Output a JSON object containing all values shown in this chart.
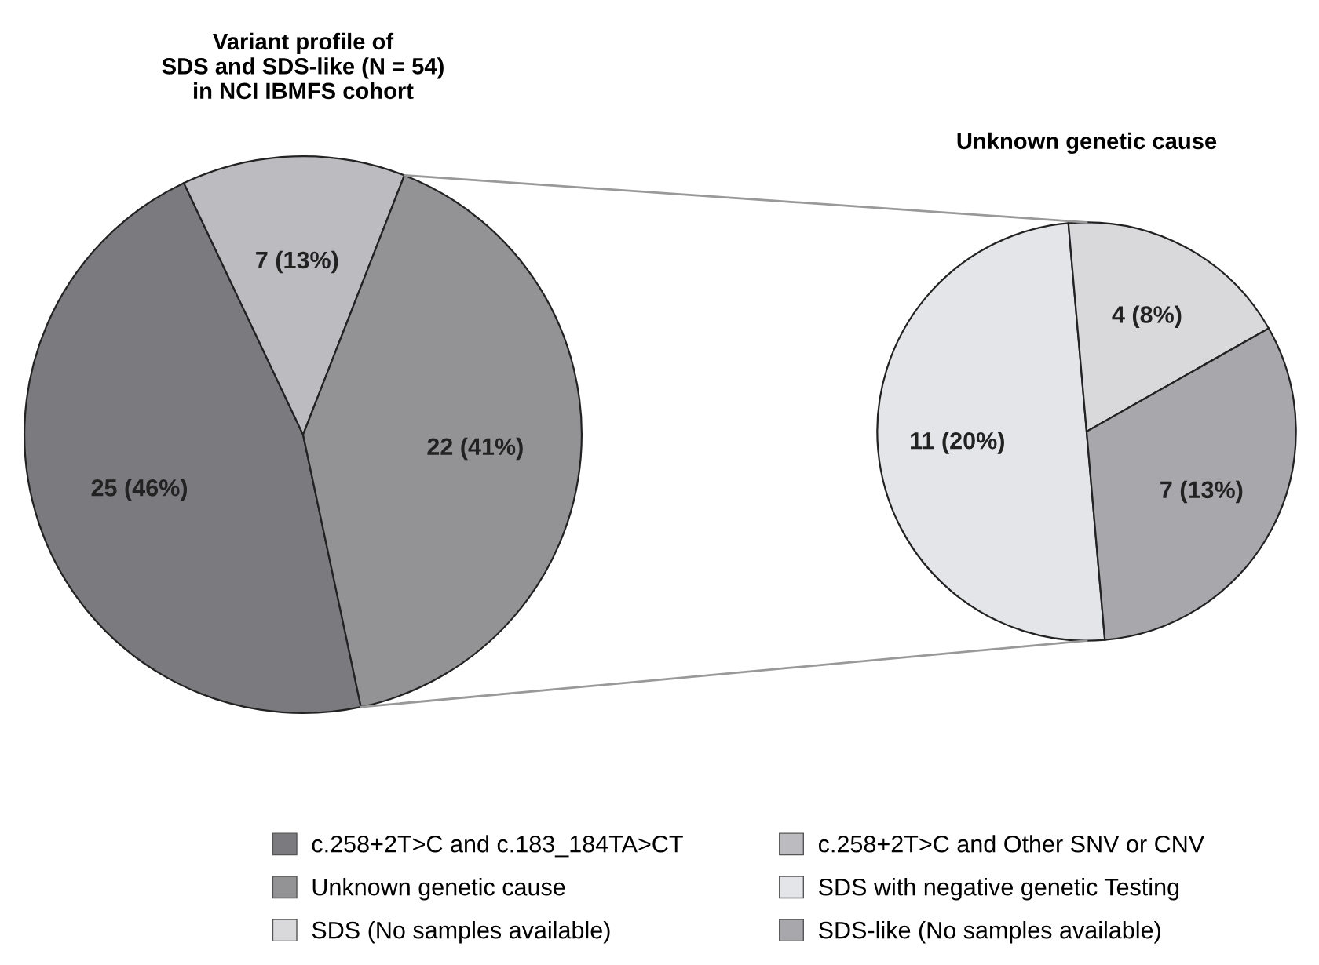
{
  "chart_data": [
    {
      "type": "pie",
      "title": "Variant profile of\nSDS and SDS-like (N = 54)\nin NCI IBMFS cohort",
      "categories": [
        "c.258+2T>C and c.183_184TA>CT",
        "c.258+2T>C and Other SNV or CNV",
        "Unknown genetic cause"
      ],
      "values": [
        25,
        7,
        22
      ],
      "value_labels": [
        "25 (46%)",
        "7 (13%)",
        "22 (41%)"
      ],
      "colors": [
        "#7b7b7f",
        "#bcbcc0",
        "#939396"
      ],
      "legend": "bottom"
    },
    {
      "type": "pie",
      "title": "Unknown genetic cause",
      "categories": [
        "SDS with negative genetic Testing",
        "SDS (No samples available)",
        "SDS-like (No samples available)"
      ],
      "values": [
        11,
        4,
        7
      ],
      "value_labels": [
        "11 (20%)",
        "4 (8%)",
        "7 (13%)"
      ],
      "colors": [
        "#e4e5e8",
        "#d9d9dc",
        "#a8a8ac"
      ],
      "legend": "bottom"
    }
  ]
}
